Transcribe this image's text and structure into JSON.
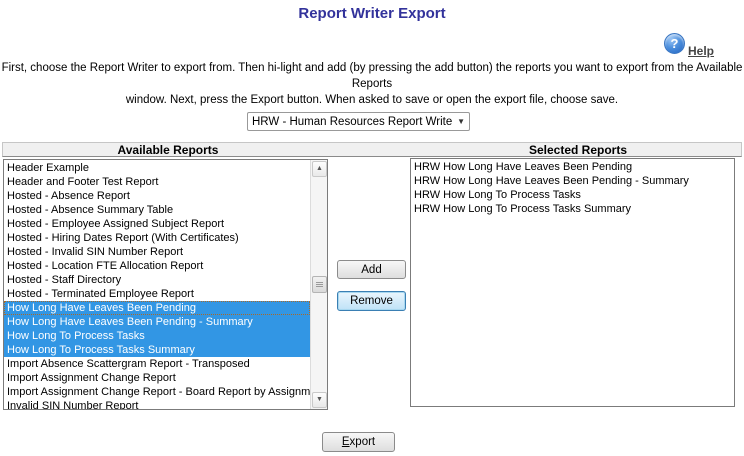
{
  "page": {
    "title": "Report Writer Export",
    "instructions_line1": "First, choose the Report Writer to export from. Then hi-light and add (by pressing the add button) the reports you want to export from the Available Reports",
    "instructions_line2": "window. Next, press the Export button. When asked to save or open the export file, choose save."
  },
  "help": {
    "icon_glyph": "?",
    "label": "Help"
  },
  "report_writer_select": {
    "value": "HRW - Human Resources Report Writer"
  },
  "colors": {
    "title": "#32329b",
    "selection_background": "#3296e4",
    "selection_text": "#ffffff",
    "header_bar_background": "#f0f0f0"
  },
  "available_reports": {
    "header": "Available Reports",
    "items": [
      {
        "label": "Header Example",
        "selected": false
      },
      {
        "label": "Header and Footer Test Report",
        "selected": false
      },
      {
        "label": "Hosted - Absence Report",
        "selected": false
      },
      {
        "label": "Hosted - Absence Summary Table",
        "selected": false
      },
      {
        "label": "Hosted - Employee Assigned Subject Report",
        "selected": false
      },
      {
        "label": "Hosted - Hiring Dates Report (With Certificates)",
        "selected": false
      },
      {
        "label": "Hosted - Invalid SIN Number Report",
        "selected": false
      },
      {
        "label": "Hosted - Location FTE Allocation Report",
        "selected": false
      },
      {
        "label": "Hosted - Staff Directory",
        "selected": false
      },
      {
        "label": "Hosted - Terminated Employee Report",
        "selected": false
      },
      {
        "label": "How Long Have Leaves Been Pending",
        "selected": true,
        "focused": true
      },
      {
        "label": "How Long Have Leaves Been Pending - Summary",
        "selected": true
      },
      {
        "label": "How Long To Process Tasks",
        "selected": true
      },
      {
        "label": "How Long To Process Tasks Summary",
        "selected": true
      },
      {
        "label": "Import Absence Scattergram Report - Transposed",
        "selected": false
      },
      {
        "label": "Import Assignment Change Report",
        "selected": false
      },
      {
        "label": "Import Assignment Change Report - Board Report by Assignment C",
        "selected": false
      },
      {
        "label": "Invalid SIN Number Report",
        "selected": false
      }
    ]
  },
  "selected_reports": {
    "header": "Selected Reports",
    "items": [
      "HRW How Long Have Leaves Been Pending",
      "HRW How Long Have Leaves Been Pending - Summary",
      "HRW How Long To Process Tasks",
      "HRW How Long To Process Tasks Summary"
    ]
  },
  "buttons": {
    "add": "Add",
    "remove": "Remove",
    "export": "Export"
  }
}
